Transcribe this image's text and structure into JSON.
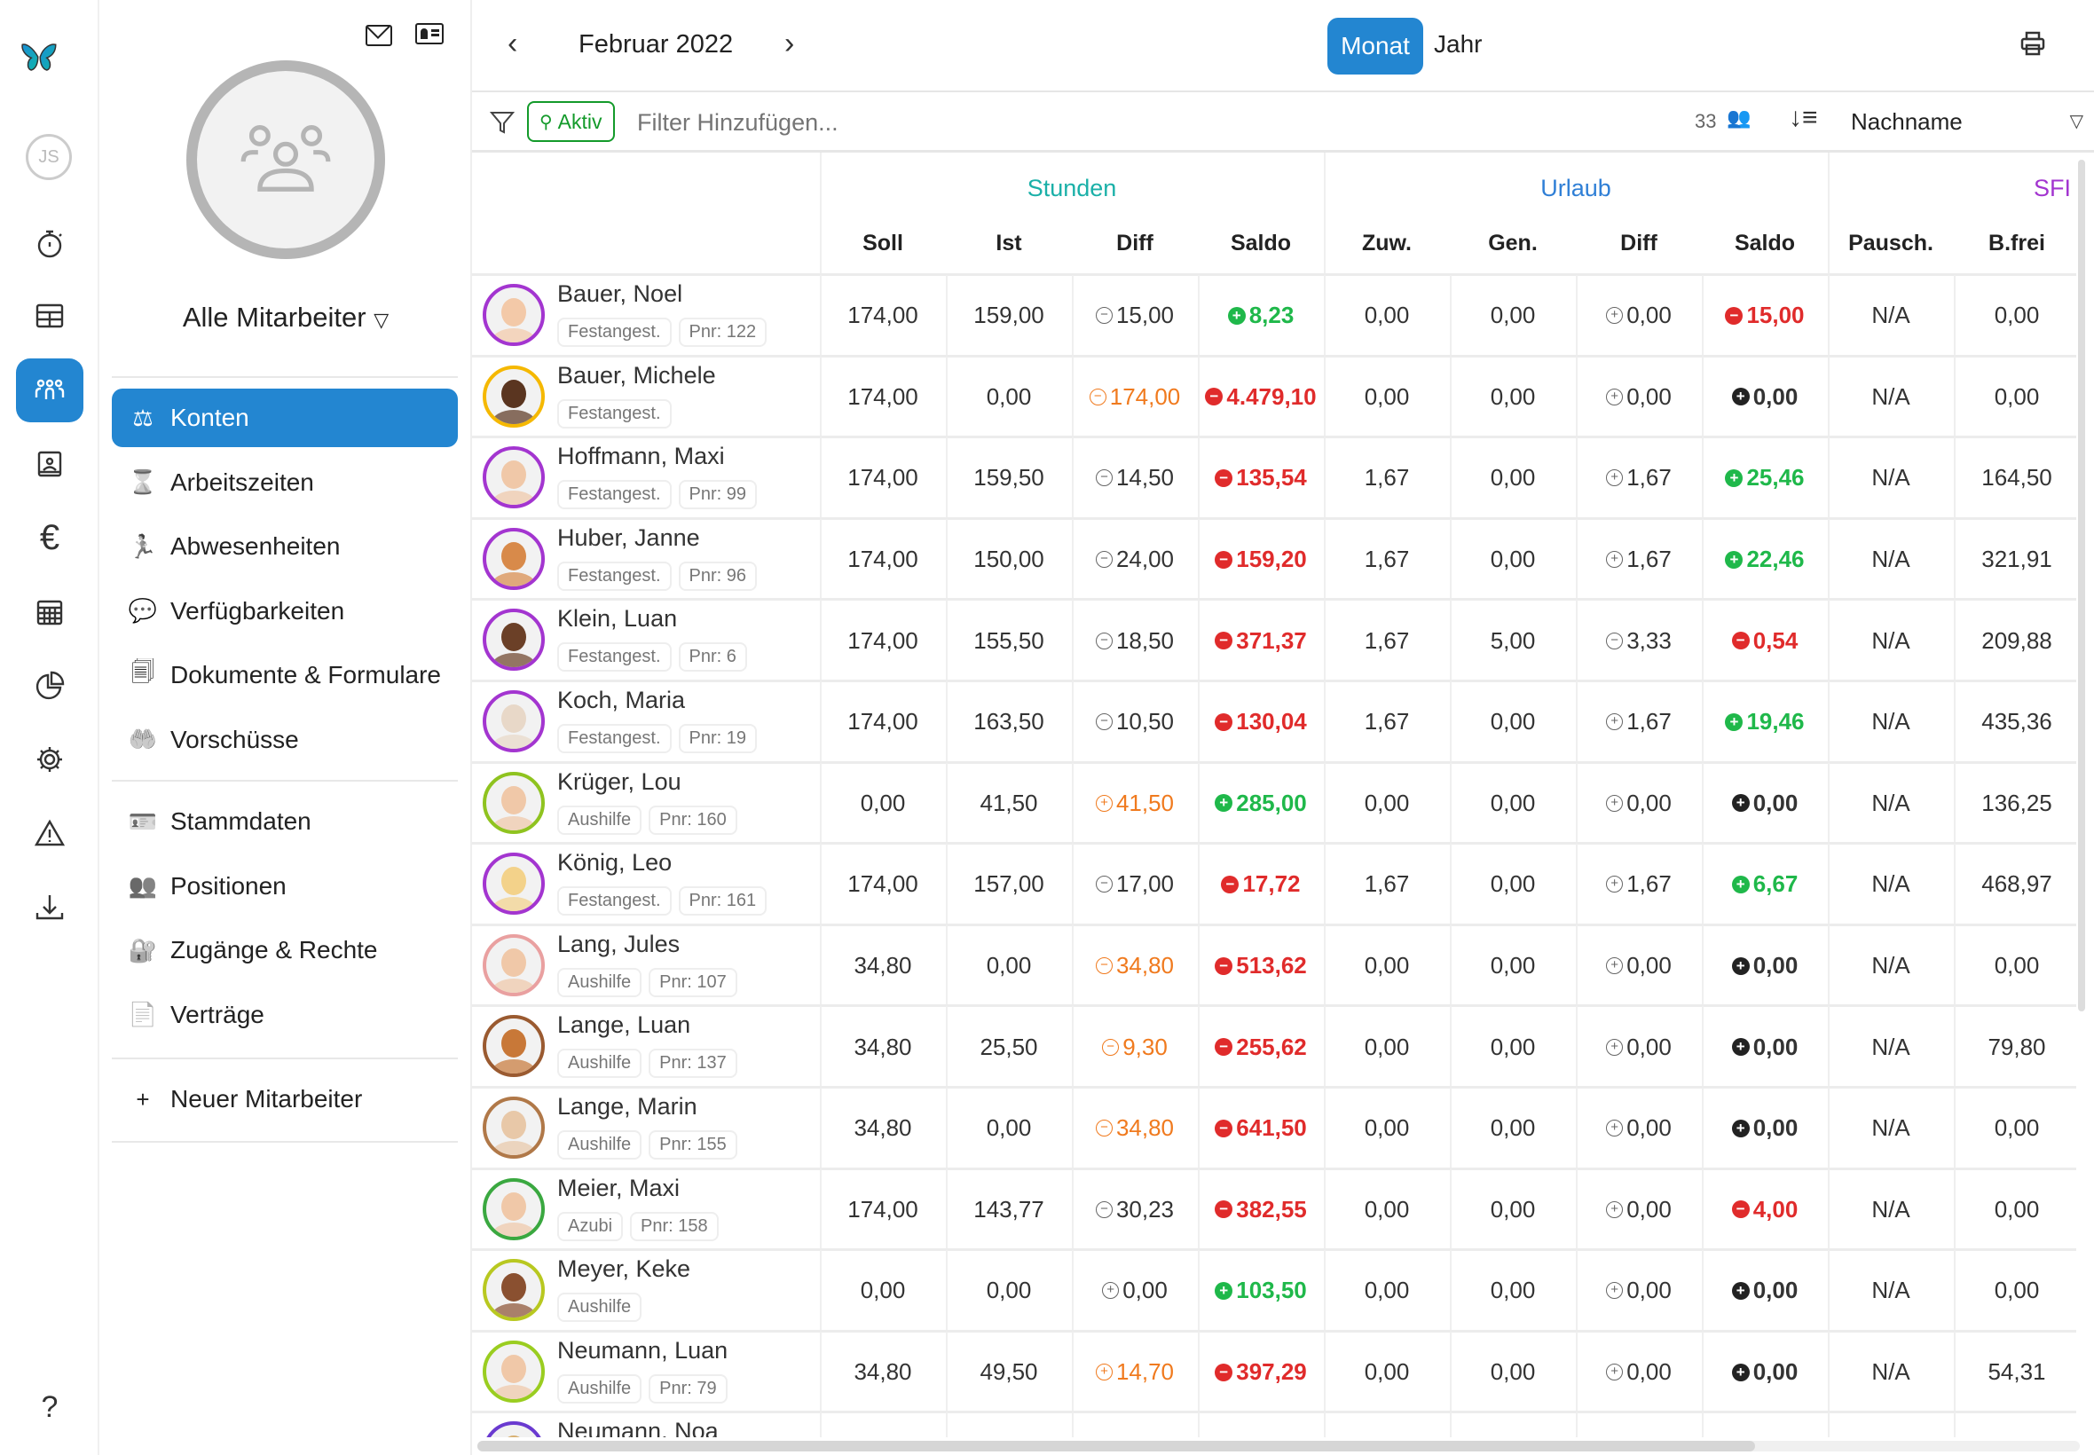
{
  "rail": {
    "user_initials": "JS",
    "items": [
      "timer",
      "table",
      "team",
      "contact-card",
      "euro",
      "calendar",
      "pie-chart",
      "gear",
      "warning",
      "download"
    ],
    "help": "?"
  },
  "side": {
    "title": "Alle Mitarbeiter",
    "menu": [
      {
        "label": "Konten",
        "icon": "scale",
        "active": true
      },
      {
        "label": "Arbeitszeiten",
        "icon": "hourglass-clock"
      },
      {
        "label": "Abwesenheiten",
        "icon": "running-person"
      },
      {
        "label": "Verfügbarkeiten",
        "icon": "chat-check"
      },
      {
        "label": "Dokumente & Formulare",
        "icon": "documents"
      },
      {
        "label": "Vorschüsse",
        "icon": "hand-coin"
      }
    ],
    "menu2": [
      {
        "label": "Stammdaten",
        "icon": "id-card"
      },
      {
        "label": "Positionen",
        "icon": "team-positions"
      },
      {
        "label": "Zugänge & Rechte",
        "icon": "user-lock"
      },
      {
        "label": "Verträge",
        "icon": "contract"
      }
    ],
    "new_employee": "Neuer Mitarbeiter"
  },
  "topbar": {
    "period": "Februar 2022",
    "view_month": "Monat",
    "view_year": "Jahr"
  },
  "filter": {
    "chip": "Aktiv",
    "placeholder": "Filter Hinzufügen...",
    "count": "33",
    "sort": "Nachname"
  },
  "colors": {
    "accent": "#2386d1",
    "stunden": "#1ab0a8",
    "urlaub": "#2f7fd6",
    "sfi": "#a335d0",
    "positive": "#1fb84a",
    "negative": "#e02b2b",
    "warn": "#f07a1e",
    "neutral": "#333333"
  },
  "groups": {
    "stunden": "Stunden",
    "urlaub": "Urlaub",
    "sfi": "SFI"
  },
  "columns": [
    "Soll",
    "Ist",
    "Diff",
    "Saldo",
    "Zuw.",
    "Gen.",
    "Diff",
    "Saldo",
    "Pausch.",
    "B.frei"
  ],
  "rows": [
    {
      "name": "Bauer, Noel",
      "type": "Festangest.",
      "pnr": "Pnr: 122",
      "ring": "#a335d0",
      "skin": "#f3c9a8",
      "cells": [
        "174,00",
        "159,00",
        [
          "-",
          "15,00",
          "n"
        ],
        [
          "+",
          "8,23",
          "p"
        ],
        "0,00",
        "0,00",
        [
          "+",
          "0,00",
          "n"
        ],
        [
          "-",
          "15,00",
          "m"
        ],
        "N/A",
        "0,00"
      ]
    },
    {
      "name": "Bauer, Michele",
      "type": "Festangest.",
      "pnr": "",
      "ring": "#f5b800",
      "skin": "#5a3520",
      "cells": [
        "174,00",
        "0,00",
        [
          "-",
          "174,00",
          "w"
        ],
        [
          "-",
          "4.479,10",
          "m"
        ],
        "0,00",
        "0,00",
        [
          "+",
          "0,00",
          "n"
        ],
        [
          "+",
          "0,00",
          "d"
        ],
        "N/A",
        "0,00"
      ]
    },
    {
      "name": "Hoffmann, Maxi",
      "type": "Festangest.",
      "pnr": "Pnr: 99",
      "ring": "#a335d0",
      "skin": "#f0c8a8",
      "cells": [
        "174,00",
        "159,50",
        [
          "-",
          "14,50",
          "n"
        ],
        [
          "-",
          "135,54",
          "m"
        ],
        "1,67",
        "0,00",
        [
          "+",
          "1,67",
          "n"
        ],
        [
          "+",
          "25,46",
          "p"
        ],
        "N/A",
        "164,50"
      ]
    },
    {
      "name": "Huber, Janne",
      "type": "Festangest.",
      "pnr": "Pnr: 96",
      "ring": "#a335d0",
      "skin": "#d88a4a",
      "cells": [
        "174,00",
        "150,00",
        [
          "-",
          "24,00",
          "n"
        ],
        [
          "-",
          "159,20",
          "m"
        ],
        "1,67",
        "0,00",
        [
          "+",
          "1,67",
          "n"
        ],
        [
          "+",
          "22,46",
          "p"
        ],
        "N/A",
        "321,91"
      ]
    },
    {
      "name": "Klein, Luan",
      "type": "Festangest.",
      "pnr": "Pnr: 6",
      "ring": "#a335d0",
      "skin": "#6b4027",
      "cells": [
        "174,00",
        "155,50",
        [
          "-",
          "18,50",
          "n"
        ],
        [
          "-",
          "371,37",
          "m"
        ],
        "1,67",
        "5,00",
        [
          "-",
          "3,33",
          "n"
        ],
        [
          "-",
          "0,54",
          "m"
        ],
        "N/A",
        "209,88"
      ]
    },
    {
      "name": "Koch, Maria",
      "type": "Festangest.",
      "pnr": "Pnr: 19",
      "ring": "#a335d0",
      "skin": "#e8d8c8",
      "cells": [
        "174,00",
        "163,50",
        [
          "-",
          "10,50",
          "n"
        ],
        [
          "-",
          "130,04",
          "m"
        ],
        "1,67",
        "0,00",
        [
          "+",
          "1,67",
          "n"
        ],
        [
          "+",
          "19,46",
          "p"
        ],
        "N/A",
        "435,36"
      ]
    },
    {
      "name": "Krüger, Lou",
      "type": "Aushilfe",
      "pnr": "Pnr: 160",
      "ring": "#8fc31f",
      "skin": "#f0c8a8",
      "cells": [
        "0,00",
        "41,50",
        [
          "+",
          "41,50",
          "w"
        ],
        [
          "+",
          "285,00",
          "p"
        ],
        "0,00",
        "0,00",
        [
          "+",
          "0,00",
          "n"
        ],
        [
          "+",
          "0,00",
          "d"
        ],
        "N/A",
        "136,25"
      ]
    },
    {
      "name": "König, Leo",
      "type": "Festangest.",
      "pnr": "Pnr: 161",
      "ring": "#a335d0",
      "skin": "#f3d28a",
      "cells": [
        "174,00",
        "157,00",
        [
          "-",
          "17,00",
          "n"
        ],
        [
          "-",
          "17,72",
          "m"
        ],
        "1,67",
        "0,00",
        [
          "+",
          "1,67",
          "n"
        ],
        [
          "+",
          "6,67",
          "p"
        ],
        "N/A",
        "468,97"
      ]
    },
    {
      "name": "Lang, Jules",
      "type": "Aushilfe",
      "pnr": "Pnr: 107",
      "ring": "#e9a0a0",
      "skin": "#f0c8a8",
      "cells": [
        "34,80",
        "0,00",
        [
          "-",
          "34,80",
          "w"
        ],
        [
          "-",
          "513,62",
          "m"
        ],
        "0,00",
        "0,00",
        [
          "+",
          "0,00",
          "n"
        ],
        [
          "+",
          "0,00",
          "d"
        ],
        "N/A",
        "0,00"
      ]
    },
    {
      "name": "Lange, Luan",
      "type": "Aushilfe",
      "pnr": "Pnr: 137",
      "ring": "#9a5a30",
      "skin": "#c87838",
      "cells": [
        "34,80",
        "25,50",
        [
          "-",
          "9,30",
          "w"
        ],
        [
          "-",
          "255,62",
          "m"
        ],
        "0,00",
        "0,00",
        [
          "+",
          "0,00",
          "n"
        ],
        [
          "+",
          "0,00",
          "d"
        ],
        "N/A",
        "79,80"
      ]
    },
    {
      "name": "Lange, Marin",
      "type": "Aushilfe",
      "pnr": "Pnr: 155",
      "ring": "#b07848",
      "skin": "#e8c8a8",
      "cells": [
        "34,80",
        "0,00",
        [
          "-",
          "34,80",
          "w"
        ],
        [
          "-",
          "641,50",
          "m"
        ],
        "0,00",
        "0,00",
        [
          "+",
          "0,00",
          "n"
        ],
        [
          "+",
          "0,00",
          "d"
        ],
        "N/A",
        "0,00"
      ]
    },
    {
      "name": "Meier, Maxi",
      "type": "Azubi",
      "pnr": "Pnr: 158",
      "ring": "#3aa840",
      "skin": "#f0c8a8",
      "cells": [
        "174,00",
        "143,77",
        [
          "-",
          "30,23",
          "n"
        ],
        [
          "-",
          "382,55",
          "m"
        ],
        "0,00",
        "0,00",
        [
          "+",
          "0,00",
          "n"
        ],
        [
          "-",
          "4,00",
          "m"
        ],
        "N/A",
        "0,00"
      ]
    },
    {
      "name": "Meyer, Keke",
      "type": "Aushilfe",
      "pnr": "",
      "ring": "#b8c820",
      "skin": "#8a5030",
      "cells": [
        "0,00",
        "0,00",
        [
          "+",
          "0,00",
          "n"
        ],
        [
          "+",
          "103,50",
          "p"
        ],
        "0,00",
        "0,00",
        [
          "+",
          "0,00",
          "n"
        ],
        [
          "+",
          "0,00",
          "d"
        ],
        "N/A",
        "0,00"
      ]
    },
    {
      "name": "Neumann, Luan",
      "type": "Aushilfe",
      "pnr": "Pnr: 79",
      "ring": "#9acd20",
      "skin": "#f0c8a8",
      "cells": [
        "34,80",
        "49,50",
        [
          "+",
          "14,70",
          "w"
        ],
        [
          "-",
          "397,29",
          "m"
        ],
        "0,00",
        "0,00",
        [
          "+",
          "0,00",
          "n"
        ],
        [
          "+",
          "0,00",
          "d"
        ],
        "N/A",
        "54,31"
      ]
    },
    {
      "name": "Neumann, Noa",
      "type": "",
      "pnr": "",
      "ring": "#6a3ad0",
      "skin": "#d8b070",
      "cells": [
        "",
        "",
        "",
        "",
        "",
        "",
        "",
        "",
        "",
        ""
      ]
    }
  ]
}
